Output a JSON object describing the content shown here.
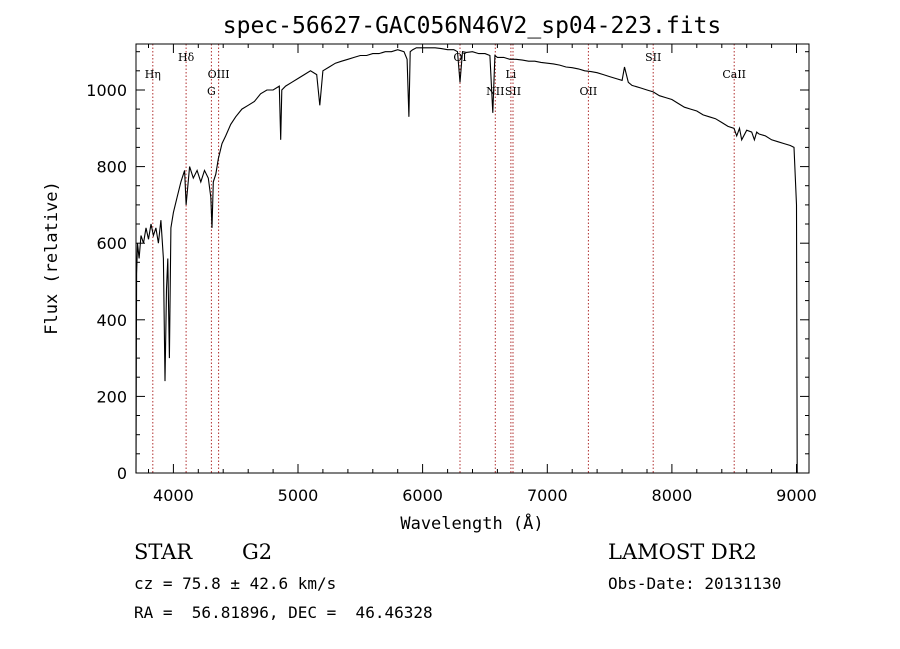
{
  "chart_data": {
    "type": "line",
    "title": "spec-56627-GAC056N46V2_sp04-223.fits",
    "xlabel": "Wavelength (Å)",
    "ylabel": "Flux (relative)",
    "xlim": [
      3700,
      9100
    ],
    "ylim": [
      0,
      1120
    ],
    "x_ticks": [
      4000,
      5000,
      6000,
      7000,
      8000,
      9000
    ],
    "y_ticks": [
      0,
      200,
      400,
      600,
      800,
      1000
    ],
    "grid": false,
    "legend": "none",
    "series": [
      {
        "x": [
          3700,
          3705,
          3712,
          3725,
          3740,
          3760,
          3780,
          3800,
          3820,
          3840,
          3860,
          3880,
          3900,
          3920,
          3933,
          3945,
          3955,
          3968,
          3980,
          4000,
          4030,
          4060,
          4090,
          4102,
          4130,
          4160,
          4190,
          4220,
          4250,
          4280,
          4300,
          4310,
          4320,
          4340,
          4360,
          4390,
          4420,
          4460,
          4500,
          4550,
          4600,
          4650,
          4700,
          4750,
          4800,
          4850,
          4861,
          4870,
          4900,
          4950,
          5000,
          5050,
          5100,
          5150,
          5175,
          5200,
          5250,
          5300,
          5350,
          5400,
          5450,
          5500,
          5550,
          5600,
          5650,
          5700,
          5750,
          5800,
          5850,
          5875,
          5890,
          5900,
          5920,
          5950,
          6000,
          6050,
          6100,
          6150,
          6200,
          6250,
          6280,
          6300,
          6320,
          6350,
          6400,
          6450,
          6500,
          6540,
          6563,
          6580,
          6600,
          6650,
          6700,
          6750,
          6800,
          6850,
          6900,
          6950,
          7000,
          7050,
          7100,
          7150,
          7200,
          7250,
          7300,
          7350,
          7400,
          7450,
          7500,
          7550,
          7600,
          7620,
          7650,
          7680,
          7700,
          7750,
          7800,
          7850,
          7900,
          7950,
          8000,
          8050,
          8100,
          8150,
          8200,
          8250,
          8300,
          8350,
          8400,
          8450,
          8498,
          8520,
          8542,
          8560,
          8600,
          8640,
          8662,
          8680,
          8700,
          8750,
          8800,
          8850,
          8900,
          8950,
          8980,
          9000,
          9005
        ],
        "values": [
          0,
          520,
          600,
          560,
          620,
          600,
          640,
          610,
          650,
          620,
          640,
          600,
          660,
          560,
          240,
          480,
          560,
          300,
          640,
          680,
          720,
          760,
          790,
          700,
          800,
          770,
          790,
          760,
          790,
          770,
          720,
          640,
          760,
          780,
          820,
          860,
          880,
          910,
          930,
          950,
          960,
          970,
          990,
          1000,
          1000,
          1010,
          870,
          1000,
          1010,
          1020,
          1030,
          1040,
          1050,
          1040,
          960,
          1050,
          1060,
          1070,
          1075,
          1080,
          1085,
          1090,
          1090,
          1095,
          1095,
          1100,
          1100,
          1105,
          1100,
          1080,
          930,
          1100,
          1105,
          1110,
          1110,
          1110,
          1110,
          1108,
          1105,
          1105,
          1100,
          1020,
          1100,
          1098,
          1100,
          1095,
          1095,
          1090,
          940,
          1090,
          1085,
          1085,
          1080,
          1080,
          1078,
          1075,
          1075,
          1072,
          1070,
          1068,
          1065,
          1060,
          1058,
          1055,
          1050,
          1048,
          1045,
          1040,
          1035,
          1030,
          1025,
          1060,
          1020,
          1012,
          1010,
          1005,
          1000,
          995,
          985,
          980,
          975,
          965,
          955,
          950,
          945,
          935,
          930,
          925,
          915,
          905,
          900,
          880,
          900,
          870,
          895,
          890,
          870,
          890,
          885,
          880,
          870,
          865,
          860,
          855,
          850,
          700,
          0
        ]
      }
    ],
    "line_markers": [
      {
        "label": "Hη",
        "x": 3835,
        "row": 1
      },
      {
        "label": "Hδ",
        "x": 4102,
        "row": 0
      },
      {
        "label": "OIII",
        "x": 4363,
        "row": 1
      },
      {
        "label": "G",
        "x": 4305,
        "row": 2
      },
      {
        "label": "OI",
        "x": 6300,
        "row": 0
      },
      {
        "label": "Li",
        "x": 6708,
        "row": 1
      },
      {
        "label": "NII",
        "x": 6583,
        "row": 2
      },
      {
        "label": "SII",
        "x": 6725,
        "row": 2
      },
      {
        "label": "OII",
        "x": 7330,
        "row": 2
      },
      {
        "label": "SII",
        "x": 7850,
        "row": 0
      },
      {
        "label": "CaII",
        "x": 8500,
        "row": 1
      }
    ],
    "marker_lines_x": [
      3835,
      4102,
      4305,
      4363,
      6300,
      6583,
      6708,
      6725,
      7330,
      7850,
      8500
    ]
  },
  "info": {
    "class": "STAR",
    "subclass": "G2",
    "survey": "LAMOST DR2",
    "cz": "cz = 75.8 ± 42.6 km/s",
    "obs_date": "Obs-Date: 20131130",
    "coords": "RA =  56.81896, DEC =  46.46328"
  }
}
